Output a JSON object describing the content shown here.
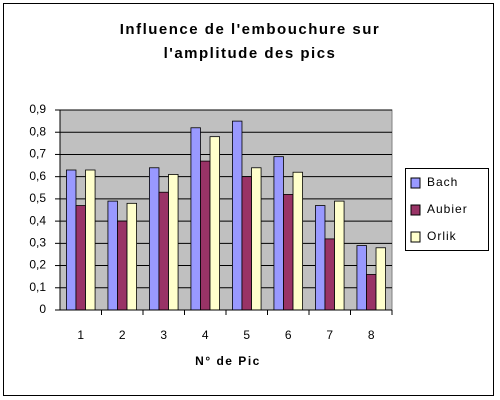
{
  "chart_data": {
    "type": "bar",
    "title": [
      "Influence de l'embouchure sur",
      "l'amplitude des pics"
    ],
    "x_label": "N° de Pic",
    "categories": [
      "1",
      "2",
      "3",
      "4",
      "5",
      "6",
      "7",
      "8"
    ],
    "series": [
      {
        "name": "Bach",
        "color": "#9999ff",
        "values": [
          0.63,
          0.49,
          0.64,
          0.82,
          0.85,
          0.69,
          0.47,
          0.29
        ]
      },
      {
        "name": "Aubier",
        "color": "#993366",
        "values": [
          0.47,
          0.4,
          0.53,
          0.67,
          0.6,
          0.52,
          0.32,
          0.16
        ]
      },
      {
        "name": "Orlik",
        "color": "#ffffcc",
        "values": [
          0.63,
          0.48,
          0.61,
          0.78,
          0.64,
          0.62,
          0.49,
          0.28
        ]
      }
    ],
    "ylim": [
      0,
      0.9
    ],
    "yticks": [
      0,
      {
        "value": 0.1,
        "label": "0,1"
      },
      {
        "value": 0.2,
        "label": "0,2"
      },
      {
        "value": 0.3,
        "label": "0,3"
      },
      {
        "value": 0.4,
        "label": "0,4"
      },
      {
        "value": 0.5,
        "label": "0,5"
      },
      {
        "value": 0.6,
        "label": "0,6"
      },
      {
        "value": 0.7,
        "label": "0,7"
      },
      {
        "value": 0.8,
        "label": "0,8"
      },
      {
        "value": 0.9,
        "label": "0,9"
      }
    ],
    "grid": true,
    "legend": "right",
    "plot_background": "#c0c0c0"
  }
}
